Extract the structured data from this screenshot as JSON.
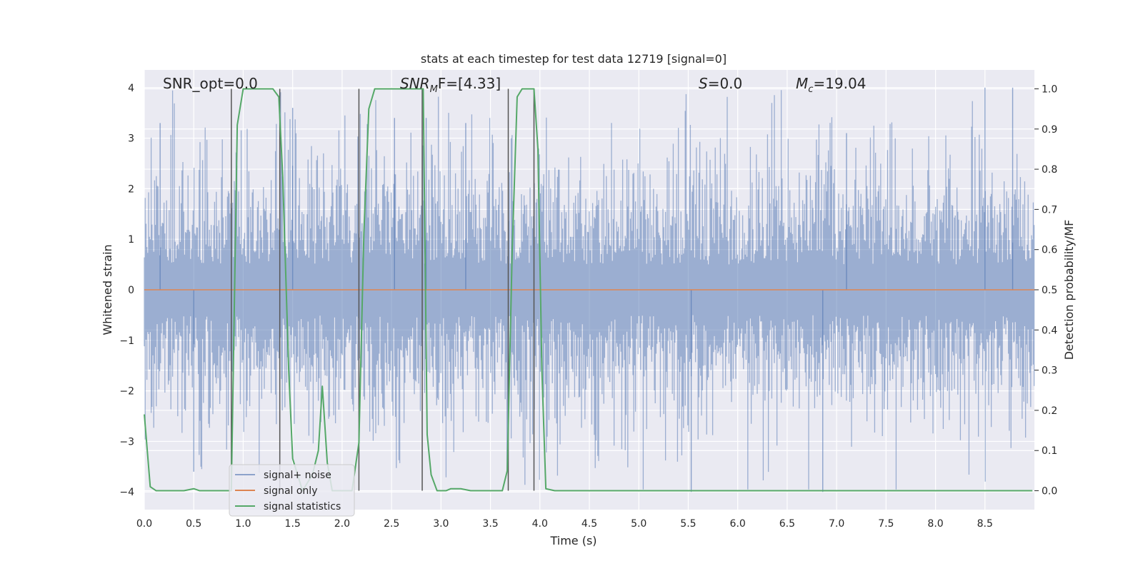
{
  "chart_data": {
    "type": "line",
    "title": "stats at each timestep for test data 12719 [signal=0]",
    "xlabel": "Time (s)",
    "ylabel": "Whitened strain",
    "y2label": "Detection probability/MF",
    "xlim": [
      0.0,
      9.0
    ],
    "ylim": [
      -4.35,
      4.35
    ],
    "y2lim": [
      -0.047,
      1.047
    ],
    "xticks": [
      "0.0",
      "0.5",
      "1.0",
      "1.5",
      "2.0",
      "2.5",
      "3.0",
      "3.5",
      "4.0",
      "4.5",
      "5.0",
      "5.5",
      "6.0",
      "6.5",
      "7.0",
      "7.5",
      "8.0",
      "8.5"
    ],
    "yticks": [
      "−4",
      "−3",
      "−2",
      "−1",
      "0",
      "1",
      "2",
      "3",
      "4"
    ],
    "y2ticks": [
      "0.0",
      "0.1",
      "0.2",
      "0.3",
      "0.4",
      "0.5",
      "0.6",
      "0.7",
      "0.8",
      "0.9",
      "1.0"
    ],
    "grid": true,
    "legend_position": "lower-left",
    "annotations": [
      {
        "prefix": "SNR_opt=0.0",
        "italic": "",
        "sub": "",
        "suffix": ""
      },
      {
        "prefix": "",
        "italic": "SNR",
        "sub": "M",
        "suffix": "F=[4.33]"
      },
      {
        "prefix": "",
        "italic": "S",
        "sub": "",
        "suffix": "=0.0"
      },
      {
        "prefix": "",
        "italic": "M",
        "sub": "c",
        "suffix": "=19.04"
      }
    ],
    "series": [
      {
        "name": "signal+ noise",
        "color": "#4c72b0",
        "approx_amplitude": 1.6,
        "peaks": [
          {
            "x": 0.16,
            "y": 3.3
          },
          {
            "x": 0.5,
            "y": -3.6
          },
          {
            "x": 1.5,
            "y": 3.6
          },
          {
            "x": 2.53,
            "y": 3.4
          },
          {
            "x": 2.85,
            "y": 3.4
          },
          {
            "x": 3.25,
            "y": 3.3
          },
          {
            "x": 5.53,
            "y": -4.0
          },
          {
            "x": 6.86,
            "y": -4.0
          },
          {
            "x": 8.5,
            "y": 4.0
          },
          {
            "x": 8.78,
            "y": 4.0
          },
          {
            "x": 7.1,
            "y": 3.1
          }
        ]
      },
      {
        "name": "signal only",
        "color": "#dd8452",
        "values": [
          [
            0.0,
            0.0
          ],
          [
            9.0,
            0.0
          ]
        ]
      },
      {
        "name": "signal statistics",
        "color": "#55a868",
        "values": [
          [
            0.0,
            0.19
          ],
          [
            0.06,
            0.01
          ],
          [
            0.12,
            0.0
          ],
          [
            0.2,
            0.0
          ],
          [
            0.3,
            0.0
          ],
          [
            0.4,
            0.0
          ],
          [
            0.5,
            0.005
          ],
          [
            0.56,
            0.0
          ],
          [
            0.7,
            0.0
          ],
          [
            0.85,
            0.0
          ],
          [
            0.88,
            0.0
          ],
          [
            0.94,
            0.91
          ],
          [
            1.0,
            1.0
          ],
          [
            1.1,
            1.0
          ],
          [
            1.2,
            1.0
          ],
          [
            1.3,
            1.0
          ],
          [
            1.36,
            0.98
          ],
          [
            1.4,
            0.78
          ],
          [
            1.46,
            0.3
          ],
          [
            1.5,
            0.08
          ],
          [
            1.6,
            0.0
          ],
          [
            1.7,
            0.04
          ],
          [
            1.76,
            0.1
          ],
          [
            1.8,
            0.26
          ],
          [
            1.85,
            0.07
          ],
          [
            1.9,
            0.0
          ],
          [
            2.0,
            0.0
          ],
          [
            2.1,
            0.0
          ],
          [
            2.17,
            0.12
          ],
          [
            2.22,
            0.64
          ],
          [
            2.27,
            0.95
          ],
          [
            2.33,
            1.0
          ],
          [
            2.5,
            1.0
          ],
          [
            2.7,
            1.0
          ],
          [
            2.82,
            1.0
          ],
          [
            2.86,
            0.14
          ],
          [
            2.9,
            0.04
          ],
          [
            2.96,
            0.0
          ],
          [
            3.05,
            0.0
          ],
          [
            3.1,
            0.005
          ],
          [
            3.2,
            0.005
          ],
          [
            3.3,
            0.0
          ],
          [
            3.5,
            0.0
          ],
          [
            3.62,
            0.0
          ],
          [
            3.67,
            0.05
          ],
          [
            3.72,
            0.6
          ],
          [
            3.77,
            0.98
          ],
          [
            3.82,
            1.0
          ],
          [
            3.94,
            1.0
          ],
          [
            3.98,
            0.85
          ],
          [
            4.02,
            0.3
          ],
          [
            4.06,
            0.005
          ],
          [
            4.15,
            0.0
          ],
          [
            5.0,
            0.0
          ],
          [
            6.0,
            0.0
          ],
          [
            7.0,
            0.0
          ],
          [
            8.0,
            0.0
          ],
          [
            8.98,
            0.0
          ]
        ]
      }
    ],
    "vertical_markers": [
      0.88,
      1.37,
      2.17,
      2.81,
      3.68,
      3.94
    ]
  }
}
